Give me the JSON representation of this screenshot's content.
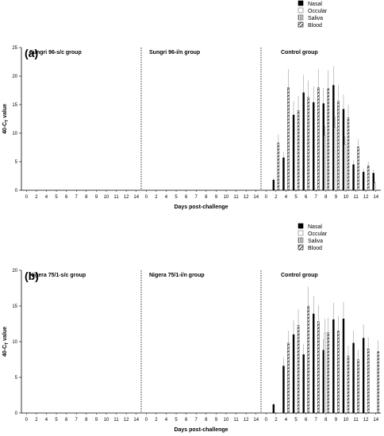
{
  "chart_data": [
    {
      "type": "bar",
      "panel_label": "(a)",
      "ylabel": "40-C",
      "ylabel_sub": "T",
      "ylabel_suffix": " value",
      "xlabel": "Days post-challenge",
      "ylim": [
        0,
        25
      ],
      "yticks": [
        0,
        5,
        10,
        15,
        20,
        25
      ],
      "days": [
        0,
        2,
        4,
        5,
        6,
        7,
        8,
        9,
        10,
        11,
        12,
        14
      ],
      "group_titles": [
        "Sungri 96-s/c group",
        "Sungri 96-i/n group",
        "Control group"
      ],
      "legend": [
        "Nasal",
        "Occular",
        "Saliva",
        "Blood"
      ],
      "series": [
        {
          "name": "Nasal",
          "values": [
            0,
            1.8,
            5.7,
            13.2,
            17.1,
            15.4,
            15.2,
            18.4,
            14.2,
            4.5,
            3.2,
            3.0
          ]
        },
        {
          "name": "Occular",
          "values": [
            0,
            0,
            0,
            0,
            0,
            0,
            9.6,
            11.0,
            8.0,
            0,
            0,
            1.3
          ]
        },
        {
          "name": "Saliva",
          "values": [
            0,
            0,
            0,
            0,
            0,
            0,
            0,
            0,
            0,
            0,
            0,
            0
          ]
        },
        {
          "name": "Blood",
          "values": [
            0,
            8.3,
            18.0,
            14.0,
            16.3,
            18.0,
            17.8,
            15.6,
            12.7,
            7.6,
            4.3,
            0
          ]
        }
      ]
    },
    {
      "type": "bar",
      "panel_label": "(b)",
      "ylabel": "40-C",
      "ylabel_sub": "T",
      "ylabel_suffix": " value",
      "xlabel": "Days post-challenge",
      "ylim": [
        0,
        20
      ],
      "yticks": [
        0,
        5,
        10,
        15,
        20
      ],
      "days": [
        0,
        2,
        4,
        5,
        6,
        7,
        8,
        9,
        10,
        11,
        12,
        14
      ],
      "group_titles": [
        "Nigera 75/1-s/c group",
        "Nigera 75/1-i/n group",
        "Control group"
      ],
      "legend": [
        "Nasal",
        "Occular",
        "Saliva",
        "Blood"
      ],
      "series": [
        {
          "name": "Nasal",
          "values": [
            0,
            1.2,
            6.6,
            11.0,
            8.2,
            13.9,
            8.8,
            13.1,
            13.2,
            9.8,
            10.5,
            0
          ]
        },
        {
          "name": "Occular",
          "values": [
            0,
            0,
            0,
            0,
            0,
            0,
            11.2,
            0,
            0,
            0,
            0,
            0
          ]
        },
        {
          "name": "Saliva",
          "values": [
            0,
            0,
            0,
            0,
            0,
            0,
            0,
            0,
            0,
            0,
            0,
            0
          ]
        },
        {
          "name": "Blood",
          "values": [
            0,
            0,
            9.8,
            12.3,
            15.0,
            12.8,
            11.3,
            11.5,
            8.0,
            7.5,
            9.0,
            8.6
          ]
        }
      ]
    }
  ]
}
